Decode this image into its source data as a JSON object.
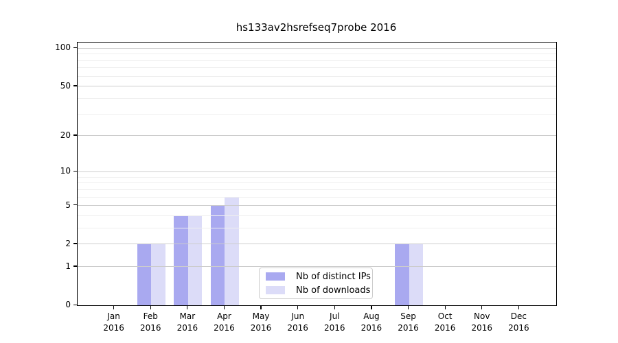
{
  "figure": {
    "title": "hs133av2hsrefseq7probe 2016"
  },
  "chart_data": {
    "type": "bar",
    "title": "hs133av2hsrefseq7probe 2016",
    "categories": [
      "Jan",
      "Feb",
      "Mar",
      "Apr",
      "May",
      "Jun",
      "Jul",
      "Aug",
      "Sep",
      "Oct",
      "Nov",
      "Dec"
    ],
    "category_sublabel": "2016",
    "series": [
      {
        "name": "Nb of distinct IPs",
        "color": "#a9a9f0",
        "values": [
          0,
          2,
          4,
          5,
          0,
          0,
          0,
          0,
          2,
          0,
          0,
          0
        ]
      },
      {
        "name": "Nb of downloads",
        "color": "#dcdcf8",
        "values": [
          0,
          2,
          4,
          6,
          0,
          0,
          0,
          0,
          2,
          0,
          0,
          0
        ]
      }
    ],
    "yscale": "log1p",
    "ylim": [
      0,
      111
    ],
    "yticks": [
      0,
      1,
      2,
      5,
      10,
      20,
      50,
      100
    ],
    "minor_yticks": [
      3,
      4,
      6,
      7,
      8,
      9,
      30,
      40,
      60,
      70,
      80,
      90
    ],
    "grid": true,
    "legend_position": "lower center",
    "colors": {
      "major_grid": "#cccccc",
      "minor_grid": "#efefef",
      "axis": "#000000",
      "legend_border": "#cccccc",
      "background": "#ffffff"
    }
  }
}
